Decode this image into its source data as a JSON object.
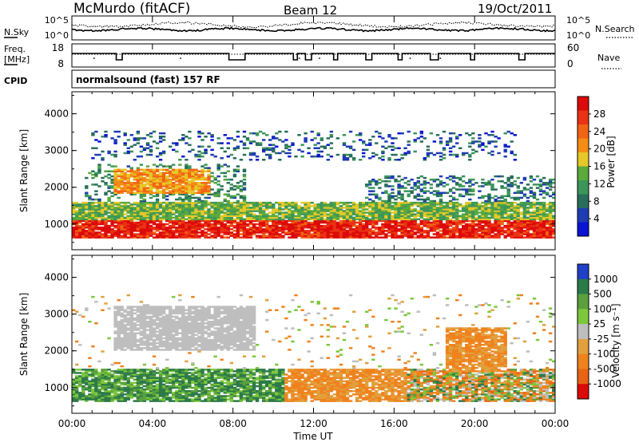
{
  "header": {
    "station": "McMurdo (fitACF)",
    "beam": "Beam 12",
    "date": "19/Oct/2011",
    "cpid_label": "CPID",
    "cpid_value": "normalsound (fast) 157 RF"
  },
  "noise_panel": {
    "left_label": "N.Sky",
    "left_ticks": [
      "10^5",
      "10^0"
    ],
    "right_label": "N.Search",
    "right_ticks": [
      "10^5",
      "10^0"
    ]
  },
  "freq_panel": {
    "left_label_1": "Freq.",
    "left_label_2": "[MHz]",
    "left_ticks": [
      "18",
      "8"
    ],
    "right_label": "Nave",
    "right_ticks": [
      "60",
      "0"
    ]
  },
  "colors": {
    "power_scale": [
      "#0a14d2",
      "#1e3cb4",
      "#286e5a",
      "#3c965a",
      "#5aaa3c",
      "#e6c828",
      "#f58c14",
      "#f06414",
      "#eb3214",
      "#dc0a0a"
    ],
    "velocity_scale": [
      "#2040c8",
      "#2c7a4a",
      "#5aa03c",
      "#7cc83c",
      "#bebebe",
      "#e1a03c",
      "#f0821e",
      "#e86414",
      "#dc0a0a"
    ],
    "freq_line": "#000000"
  },
  "chart_data": [
    {
      "type": "heatmap",
      "name": "power",
      "ylabel": "Slant Range [km]",
      "yticks": [
        1000,
        2000,
        3000,
        4000
      ],
      "ylim": [
        300,
        4600
      ],
      "xlim_hours": [
        0,
        24
      ],
      "colorbar": {
        "label": "Power [dB]",
        "ticks": [
          "28",
          "24",
          "20",
          "16",
          "12",
          "8",
          "4"
        ],
        "range": [
          0,
          31
        ]
      },
      "bands": [
        {
          "t_start": 0.0,
          "t_end": 24.0,
          "r_low": 600,
          "r_high": 1100,
          "value_db": 28,
          "note": "strong backscatter band"
        },
        {
          "t_start": 0.0,
          "t_end": 24.0,
          "r_low": 1100,
          "r_high": 1600,
          "value_db": 14
        },
        {
          "t_start": 0.5,
          "t_end": 8.5,
          "r_low": 1600,
          "r_high": 2600,
          "value_db": 10
        },
        {
          "t_start": 2.0,
          "t_end": 6.8,
          "r_low": 1800,
          "r_high": 2500,
          "value_db": 20
        },
        {
          "t_start": 0.8,
          "t_end": 22.0,
          "r_low": 2700,
          "r_high": 3500,
          "value_db": 6
        },
        {
          "t_start": 14.5,
          "t_end": 24.0,
          "r_low": 1500,
          "r_high": 2300,
          "value_db": 8
        }
      ]
    },
    {
      "type": "heatmap",
      "name": "velocity",
      "ylabel": "Slant Range [km]",
      "xlabel": "Time UT",
      "xticks": [
        "00:00",
        "04:00",
        "08:00",
        "12:00",
        "16:00",
        "20:00",
        "00:00"
      ],
      "yticks": [
        1000,
        2000,
        3000,
        4000
      ],
      "ylim": [
        300,
        4600
      ],
      "xlim_hours": [
        0,
        24
      ],
      "colorbar": {
        "label": "Velocity [m s⁻¹]",
        "ticks": [
          "1000",
          "500",
          "100",
          "25",
          "-25",
          "-100",
          "-500",
          "-1000"
        ]
      },
      "regions": [
        {
          "t_start": 0.0,
          "t_end": 10.5,
          "r_low": 600,
          "r_high": 1500,
          "category": "positive (green)"
        },
        {
          "t_start": 10.5,
          "t_end": 16.5,
          "r_low": 600,
          "r_high": 1500,
          "category": "negative (orange)"
        },
        {
          "t_start": 16.5,
          "t_end": 24.0,
          "r_low": 600,
          "r_high": 1500,
          "category": "mixed"
        },
        {
          "t_start": 2.0,
          "t_end": 9.0,
          "r_low": 2000,
          "r_high": 3200,
          "category": "near zero (grey)"
        },
        {
          "t_start": 18.5,
          "t_end": 21.5,
          "r_low": 1400,
          "r_high": 2600,
          "category": "negative (orange)"
        }
      ]
    }
  ]
}
